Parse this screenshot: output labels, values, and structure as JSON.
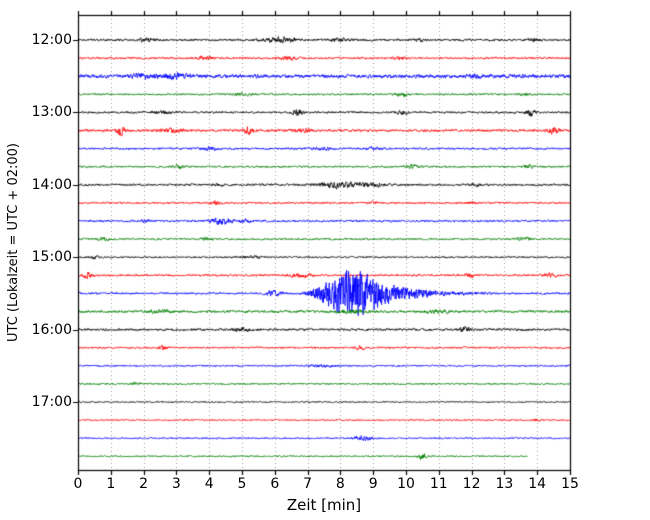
{
  "chart_data": {
    "type": "line",
    "subtype": "seismogram-dayplot",
    "title": "",
    "xlabel": "Zeit  [min]",
    "ylabel": "UTC (Lokalzeit = UTC + 02:00)",
    "x_range": [
      0,
      15
    ],
    "x_ticks": [
      0,
      1,
      2,
      3,
      4,
      5,
      6,
      7,
      8,
      9,
      10,
      11,
      12,
      13,
      14,
      15
    ],
    "grid": "vertical-dotted",
    "grid_color": "#999999",
    "hour_labels": [
      "12:00",
      "13:00",
      "14:00",
      "15:00",
      "16:00",
      "17:00"
    ],
    "trace_interval_min": 15,
    "colors_cycle": [
      "#000000",
      "#ff0000",
      "#0000ff",
      "#008000"
    ],
    "traces": [
      {
        "start": "12:00",
        "color": "#000000",
        "noise": 1.4,
        "bursts": [
          {
            "m": 2.1,
            "w": 0.15,
            "a": 2.5
          },
          {
            "m": 6.2,
            "w": 0.35,
            "a": 3.2
          },
          {
            "m": 8.0,
            "w": 0.2,
            "a": 2.2
          },
          {
            "m": 10.4,
            "w": 0.1,
            "a": 1.8
          },
          {
            "m": 13.9,
            "w": 0.12,
            "a": 2.0
          }
        ]
      },
      {
        "start": "12:15",
        "color": "#ff0000",
        "noise": 1.3,
        "bursts": [
          {
            "m": 3.9,
            "w": 0.15,
            "a": 2.2
          },
          {
            "m": 6.4,
            "w": 0.2,
            "a": 2.0
          },
          {
            "m": 9.8,
            "w": 0.12,
            "a": 1.6
          }
        ]
      },
      {
        "start": "12:30",
        "color": "#0000ff",
        "noise": 2.3,
        "bursts": [
          {
            "m": 2.0,
            "w": 0.3,
            "a": 2.0
          },
          {
            "m": 3.0,
            "w": 0.25,
            "a": 2.8
          },
          {
            "m": 12.1,
            "w": 0.15,
            "a": 1.8
          }
        ]
      },
      {
        "start": "12:45",
        "color": "#008000",
        "noise": 1.2,
        "bursts": [
          {
            "m": 5.0,
            "w": 0.2,
            "a": 1.5
          },
          {
            "m": 9.9,
            "w": 0.12,
            "a": 2.8
          },
          {
            "m": 13.6,
            "w": 0.1,
            "a": 1.6
          }
        ]
      },
      {
        "start": "13:00",
        "color": "#000000",
        "noise": 1.3,
        "bursts": [
          {
            "m": 2.5,
            "w": 0.2,
            "a": 2.2
          },
          {
            "m": 6.7,
            "w": 0.1,
            "a": 5.0
          },
          {
            "m": 9.9,
            "w": 0.15,
            "a": 1.6
          },
          {
            "m": 13.8,
            "w": 0.1,
            "a": 4.5
          }
        ]
      },
      {
        "start": "13:15",
        "color": "#ff0000",
        "noise": 1.6,
        "bursts": [
          {
            "m": 1.3,
            "w": 0.1,
            "a": 5.5
          },
          {
            "m": 2.9,
            "w": 0.2,
            "a": 2.5
          },
          {
            "m": 5.2,
            "w": 0.12,
            "a": 4.5
          },
          {
            "m": 6.8,
            "w": 0.2,
            "a": 2.2
          },
          {
            "m": 14.5,
            "w": 0.12,
            "a": 4.5
          }
        ]
      },
      {
        "start": "13:30",
        "color": "#0000ff",
        "noise": 1.3,
        "bursts": [
          {
            "m": 4.0,
            "w": 0.2,
            "a": 1.8
          },
          {
            "m": 7.4,
            "w": 0.2,
            "a": 2.2
          },
          {
            "m": 9.0,
            "w": 0.15,
            "a": 1.6
          }
        ]
      },
      {
        "start": "13:45",
        "color": "#008000",
        "noise": 1.2,
        "bursts": [
          {
            "m": 3.1,
            "w": 0.12,
            "a": 2.8
          },
          {
            "m": 10.2,
            "w": 0.15,
            "a": 2.4
          },
          {
            "m": 13.7,
            "w": 0.12,
            "a": 2.2
          }
        ]
      },
      {
        "start": "14:00",
        "color": "#000000",
        "noise": 1.4,
        "bursts": [
          {
            "m": 4.3,
            "w": 0.1,
            "a": 2.0
          },
          {
            "m": 7.9,
            "w": 0.45,
            "a": 3.6
          },
          {
            "m": 8.9,
            "w": 0.3,
            "a": 2.4
          },
          {
            "m": 12.1,
            "w": 0.1,
            "a": 1.6
          }
        ]
      },
      {
        "start": "14:15",
        "color": "#ff0000",
        "noise": 1.2,
        "bursts": [
          {
            "m": 4.2,
            "w": 0.12,
            "a": 2.0
          },
          {
            "m": 9.0,
            "w": 0.12,
            "a": 1.8
          },
          {
            "m": 12.0,
            "w": 0.1,
            "a": 1.5
          }
        ]
      },
      {
        "start": "14:30",
        "color": "#0000ff",
        "noise": 1.3,
        "bursts": [
          {
            "m": 2.1,
            "w": 0.12,
            "a": 2.0
          },
          {
            "m": 4.35,
            "w": 0.22,
            "a": 4.8
          },
          {
            "m": 5.1,
            "w": 0.12,
            "a": 2.0
          }
        ]
      },
      {
        "start": "14:45",
        "color": "#008000",
        "noise": 1.2,
        "bursts": [
          {
            "m": 0.8,
            "w": 0.12,
            "a": 2.4
          },
          {
            "m": 3.9,
            "w": 0.12,
            "a": 2.0
          },
          {
            "m": 13.6,
            "w": 0.15,
            "a": 2.6
          }
        ]
      },
      {
        "start": "15:00",
        "color": "#000000",
        "noise": 1.1,
        "bursts": [
          {
            "m": 0.5,
            "w": 0.1,
            "a": 2.2
          },
          {
            "m": 5.3,
            "w": 0.2,
            "a": 1.5
          }
        ]
      },
      {
        "start": "15:15",
        "color": "#ff0000",
        "noise": 1.3,
        "bursts": [
          {
            "m": 0.3,
            "w": 0.1,
            "a": 4.0
          },
          {
            "m": 6.8,
            "w": 0.25,
            "a": 2.2
          },
          {
            "m": 11.9,
            "w": 0.12,
            "a": 2.8
          },
          {
            "m": 14.4,
            "w": 0.15,
            "a": 2.2
          }
        ]
      },
      {
        "start": "15:30",
        "color": "#0000ff",
        "noise": 1.3,
        "bursts": [
          {
            "m": 6.0,
            "w": 0.2,
            "a": 3.0
          }
        ],
        "event": {
          "onset_min": 6.6,
          "peak_min": 8.35,
          "end_min": 12.6,
          "amp": 34
        }
      },
      {
        "start": "15:45",
        "color": "#008000",
        "noise": 1.6,
        "bursts": [
          {
            "m": 2.5,
            "w": 0.3,
            "a": 1.8
          },
          {
            "m": 8.3,
            "w": 0.3,
            "a": 2.4
          },
          {
            "m": 11.0,
            "w": 0.3,
            "a": 1.6
          }
        ]
      },
      {
        "start": "16:00",
        "color": "#000000",
        "noise": 1.5,
        "bursts": [
          {
            "m": 5.0,
            "w": 0.25,
            "a": 2.0
          },
          {
            "m": 11.8,
            "w": 0.12,
            "a": 2.6
          }
        ]
      },
      {
        "start": "16:15",
        "color": "#ff0000",
        "noise": 1.2,
        "bursts": [
          {
            "m": 2.6,
            "w": 0.1,
            "a": 2.2
          },
          {
            "m": 8.6,
            "w": 0.12,
            "a": 1.8
          }
        ]
      },
      {
        "start": "16:30",
        "color": "#0000ff",
        "noise": 1.1,
        "bursts": [
          {
            "m": 7.5,
            "w": 0.3,
            "a": 1.2
          }
        ]
      },
      {
        "start": "16:45",
        "color": "#008000",
        "noise": 1.1,
        "bursts": [
          {
            "m": 1.8,
            "w": 0.1,
            "a": 2.2
          }
        ]
      },
      {
        "start": "17:00",
        "color": "#000000",
        "noise": 0.9,
        "bursts": []
      },
      {
        "start": "17:15",
        "color": "#ff0000",
        "noise": 1.0,
        "bursts": [
          {
            "m": 14.0,
            "w": 0.1,
            "a": 1.4
          }
        ]
      },
      {
        "start": "17:30",
        "color": "#0000ff",
        "noise": 1.0,
        "bursts": [
          {
            "m": 8.7,
            "w": 0.2,
            "a": 3.2
          }
        ]
      },
      {
        "start": "17:45",
        "color": "#008000",
        "noise": 1.0,
        "end_min": 13.7,
        "bursts": [
          {
            "m": 10.5,
            "w": 0.08,
            "a": 5.5
          }
        ]
      }
    ]
  }
}
